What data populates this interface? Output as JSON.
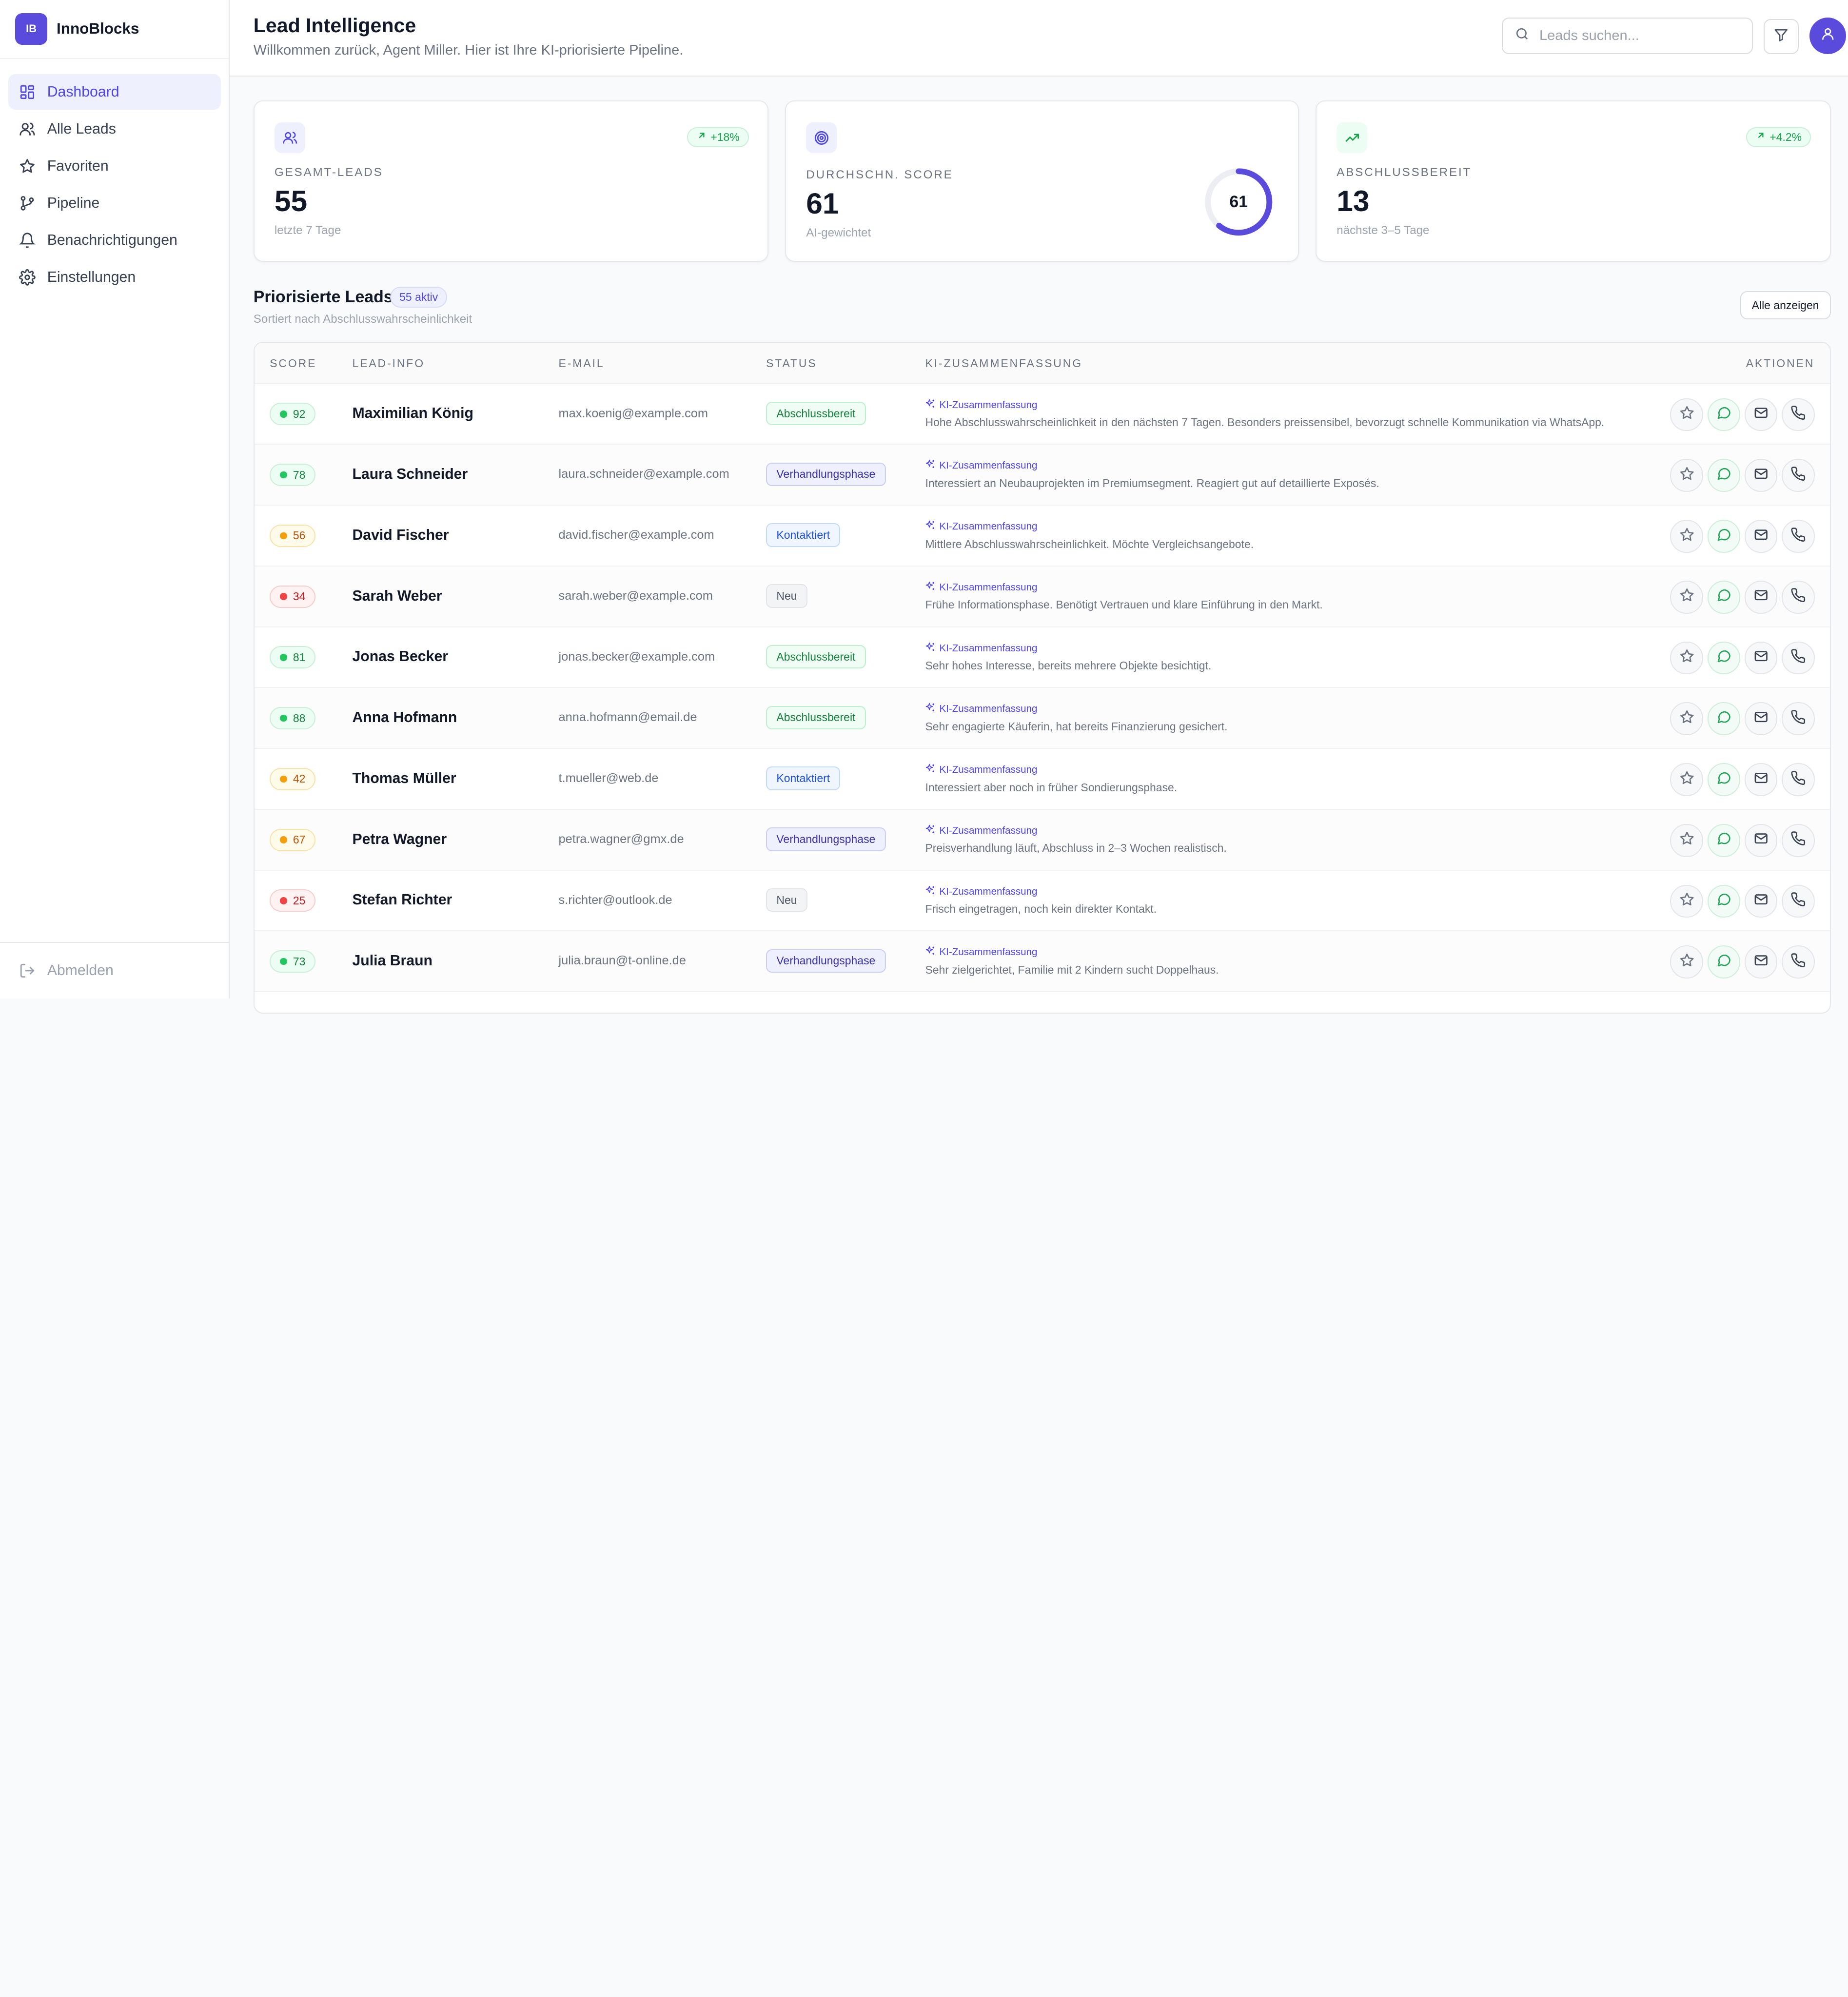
{
  "brand": {
    "logo_text": "IB",
    "name": "InnoBlocks"
  },
  "sidebar": {
    "items": [
      {
        "label": "Dashboard",
        "icon": "grid-icon",
        "active": true
      },
      {
        "label": "Alle Leads",
        "icon": "users-icon",
        "active": false
      },
      {
        "label": "Favoriten",
        "icon": "star-icon",
        "active": false
      },
      {
        "label": "Pipeline",
        "icon": "git-branch-icon",
        "active": false
      },
      {
        "label": "Benachrichtigungen",
        "icon": "bell-icon",
        "active": false
      },
      {
        "label": "Einstellungen",
        "icon": "gear-icon",
        "active": false
      }
    ],
    "logout_label": "Abmelden"
  },
  "header": {
    "title": "Lead Intelligence",
    "subtitle": "Willkommen zurück, Agent Miller. Hier ist Ihre KI-priorisierte Pipeline.",
    "search_placeholder": "Leads suchen..."
  },
  "stats": {
    "total": {
      "label": "Gesamt-Leads",
      "value": "55",
      "note": "letzte 7 Tage",
      "badge": "+18%"
    },
    "score": {
      "label": "Durchschn. Score",
      "value": "61",
      "note": "AI-gewichtet",
      "ring_value": "61",
      "ring_percent": 61
    },
    "ready": {
      "label": "Abschlussbereit",
      "value": "13",
      "note": "nächste 3–5 Tage",
      "badge": "+4.2%"
    }
  },
  "section": {
    "title": "Priorisierte Leads",
    "count_badge": "55 aktiv",
    "subtitle": "Sortiert nach Abschlusswahrscheinlichkeit",
    "show_all": "Alle anzeigen"
  },
  "table": {
    "columns": {
      "score": "Score",
      "lead": "Lead-Info",
      "email": "E-Mail",
      "status": "Status",
      "summary": "KI-Zusammenfassung",
      "actions": "Aktionen"
    },
    "ai_tag": "KI-Zusammenfassung",
    "rows": [
      {
        "score": "92",
        "level": "high",
        "name": "Maximilian König",
        "email": "max.koenig@example.com",
        "status": "Abschlussbereit",
        "status_type": "ready",
        "summary": "Hohe Abschlusswahrscheinlichkeit in den nächsten 7 Tagen. Besonders preissensibel, bevorzugt schnelle Kommunikation via WhatsApp."
      },
      {
        "score": "78",
        "level": "high",
        "name": "Laura Schneider",
        "email": "laura.schneider@example.com",
        "status": "Verhandlungsphase",
        "status_type": "negotiation",
        "summary": "Interessiert an Neubauprojekten im Premiumsegment. Reagiert gut auf detaillierte Exposés."
      },
      {
        "score": "56",
        "level": "mid",
        "name": "David Fischer",
        "email": "david.fischer@example.com",
        "status": "Kontaktiert",
        "status_type": "contacted",
        "summary": "Mittlere Abschlusswahrscheinlichkeit. Möchte Vergleichsangebote."
      },
      {
        "score": "34",
        "level": "low",
        "name": "Sarah Weber",
        "email": "sarah.weber@example.com",
        "status": "Neu",
        "status_type": "new",
        "summary": "Frühe Informationsphase. Benötigt Vertrauen und klare Einführung in den Markt."
      },
      {
        "score": "81",
        "level": "high",
        "name": "Jonas Becker",
        "email": "jonas.becker@example.com",
        "status": "Abschlussbereit",
        "status_type": "ready",
        "summary": "Sehr hohes Interesse, bereits mehrere Objekte besichtigt."
      },
      {
        "score": "88",
        "level": "high",
        "name": "Anna Hofmann",
        "email": "anna.hofmann@email.de",
        "status": "Abschlussbereit",
        "status_type": "ready",
        "summary": "Sehr engagierte Käuferin, hat bereits Finanzierung gesichert."
      },
      {
        "score": "42",
        "level": "mid",
        "name": "Thomas Müller",
        "email": "t.mueller@web.de",
        "status": "Kontaktiert",
        "status_type": "contacted",
        "summary": "Interessiert aber noch in früher Sondierungsphase."
      },
      {
        "score": "67",
        "level": "mid",
        "name": "Petra Wagner",
        "email": "petra.wagner@gmx.de",
        "status": "Verhandlungsphase",
        "status_type": "negotiation",
        "summary": "Preisverhandlung läuft, Abschluss in 2–3 Wochen realistisch."
      },
      {
        "score": "25",
        "level": "low",
        "name": "Stefan Richter",
        "email": "s.richter@outlook.de",
        "status": "Neu",
        "status_type": "new",
        "summary": "Frisch eingetragen, noch kein direkter Kontakt."
      },
      {
        "score": "73",
        "level": "high",
        "name": "Julia Braun",
        "email": "julia.braun@t-online.de",
        "status": "Verhandlungsphase",
        "status_type": "negotiation",
        "summary": "Sehr zielgerichtet, Familie mit 2 Kindern sucht Doppelhaus."
      }
    ]
  },
  "colors": {
    "accent": "#5b4bdc",
    "score_high": "#22c55e",
    "score_mid": "#f59e0b",
    "score_low": "#ef4444"
  }
}
